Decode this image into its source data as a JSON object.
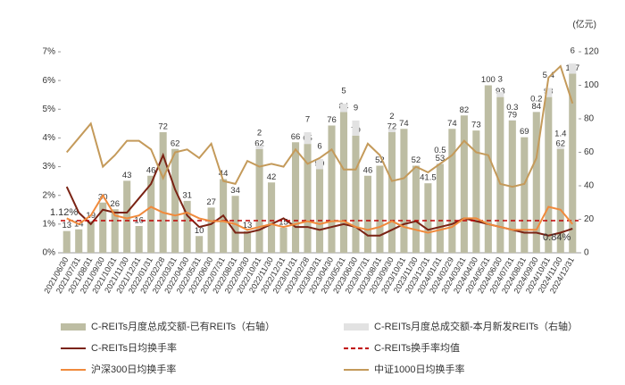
{
  "chart_data": {
    "type": "combo",
    "categories": [
      "2021/06/30",
      "2021/07/31",
      "2021/08/31",
      "2021/09/30",
      "2021/10/31",
      "2021/11/30",
      "2021/12/31",
      "2022/01/31",
      "2022/02/28",
      "2022/03/31",
      "2022/04/30",
      "2022/05/31",
      "2022/06/30",
      "2022/07/31",
      "2022/08/31",
      "2022/09/30",
      "2022/10/31",
      "2022/11/30",
      "2022/12/31",
      "2023/01/31",
      "2023/02/28",
      "2023/03/31",
      "2023/04/30",
      "2023/05/31",
      "2023/06/30",
      "2023/07/31",
      "2023/08/31",
      "2023/09/30",
      "2023/10/31",
      "2023/11/30",
      "2023/12/31",
      "2024/01/31",
      "2024/02/29",
      "2024/03/31",
      "2024/04/30",
      "2024/05/31",
      "2024/06/30",
      "2024/07/31",
      "2024/08/31",
      "2024/09/30",
      "2024/10/31",
      "2024/11/30",
      "2024/12/31"
    ],
    "ylim": [
      0,
      7
    ],
    "yticks": [
      {
        "value": 0,
        "label": "0%"
      },
      {
        "value": 1,
        "label": "1%"
      },
      {
        "value": 2,
        "label": "2%"
      },
      {
        "value": 3,
        "label": "3%"
      },
      {
        "value": 4,
        "label": "4%"
      },
      {
        "value": 5,
        "label": "5%"
      },
      {
        "value": 6,
        "label": "6%"
      },
      {
        "value": 7,
        "label": "7%"
      }
    ],
    "y2lim": [
      0,
      120
    ],
    "y2ticks": [
      0,
      20,
      40,
      60,
      80,
      100,
      120
    ],
    "y2_label": "(亿元)",
    "series": [
      {
        "name": "C-REITs月度总成交额-已有REITs（右轴）",
        "type": "bar",
        "axis": "y2",
        "color": "#bdbda3",
        "values": [
          13,
          14,
          19,
          30,
          26,
          43,
          16,
          46,
          72,
          62,
          31,
          10,
          27,
          44,
          34,
          13,
          62,
          42,
          15,
          66,
          65,
          50,
          76,
          84,
          70,
          46,
          52,
          72,
          74,
          52,
          41.5,
          53,
          74,
          82,
          73,
          100,
          93,
          79,
          69,
          84,
          93,
          62,
          107
        ]
      },
      {
        "name": "C-REITs月度总成交额-本月新发REITs（右轴）",
        "type": "bar",
        "axis": "y2",
        "color": "#e2e2e2",
        "values": [
          null,
          null,
          null,
          null,
          null,
          null,
          null,
          null,
          null,
          null,
          null,
          null,
          null,
          null,
          null,
          null,
          2,
          null,
          null,
          null,
          7,
          6,
          null,
          5,
          9,
          null,
          null,
          2,
          null,
          null,
          null,
          0.5,
          null,
          null,
          null,
          null,
          3,
          0.3,
          null,
          0.2,
          5.4,
          1.4,
          6.0
        ]
      },
      {
        "name": "C-REITs日均换手率",
        "type": "line",
        "color": "#7a2314",
        "last_label": "0.84%",
        "values": [
          2.3,
          1.4,
          1.0,
          1.5,
          1.4,
          1.4,
          1.9,
          2.4,
          3.4,
          2.2,
          1.3,
          0.9,
          1.0,
          1.3,
          0.7,
          0.7,
          0.8,
          1.0,
          1.2,
          0.9,
          0.9,
          0.8,
          0.9,
          1.0,
          0.9,
          0.6,
          0.6,
          0.8,
          1.0,
          1.1,
          0.8,
          0.9,
          1.0,
          1.2,
          1.1,
          1.0,
          0.9,
          0.8,
          0.7,
          0.7,
          0.6,
          0.7,
          0.84
        ]
      },
      {
        "name": "C-REITs换手率均值",
        "type": "hline",
        "color": "#c00000",
        "value": 1.12,
        "value_label": "1.12%"
      },
      {
        "name": "沪深300日均换手率",
        "type": "line",
        "color": "#f08a3c",
        "values": [
          1.2,
          1.0,
          1.3,
          2.0,
          1.3,
          1.2,
          1.3,
          1.6,
          1.4,
          1.3,
          1.4,
          1.2,
          1.1,
          1.1,
          1.0,
          0.8,
          0.9,
          1.0,
          0.9,
          1.0,
          1.1,
          1.0,
          1.1,
          1.1,
          0.9,
          0.8,
          0.9,
          1.1,
          0.9,
          0.8,
          0.7,
          0.8,
          0.9,
          1.2,
          1.2,
          1.0,
          0.9,
          0.8,
          0.8,
          0.8,
          1.6,
          1.5,
          1.0
        ]
      },
      {
        "name": "中证1000日均换手率",
        "type": "line",
        "color": "#c49a5a",
        "values": [
          3.5,
          4.0,
          4.5,
          3.0,
          3.4,
          3.9,
          3.9,
          3.6,
          2.6,
          3.5,
          3.6,
          3.3,
          3.8,
          2.5,
          2.4,
          3.2,
          3.0,
          3.1,
          3.0,
          3.6,
          3.1,
          3.3,
          3.6,
          2.9,
          2.9,
          3.8,
          3.4,
          2.5,
          2.6,
          3.0,
          2.8,
          3.1,
          3.4,
          3.9,
          3.5,
          3.4,
          2.4,
          2.3,
          2.4,
          3.3,
          6.1,
          6.5,
          5.2
        ]
      }
    ]
  }
}
